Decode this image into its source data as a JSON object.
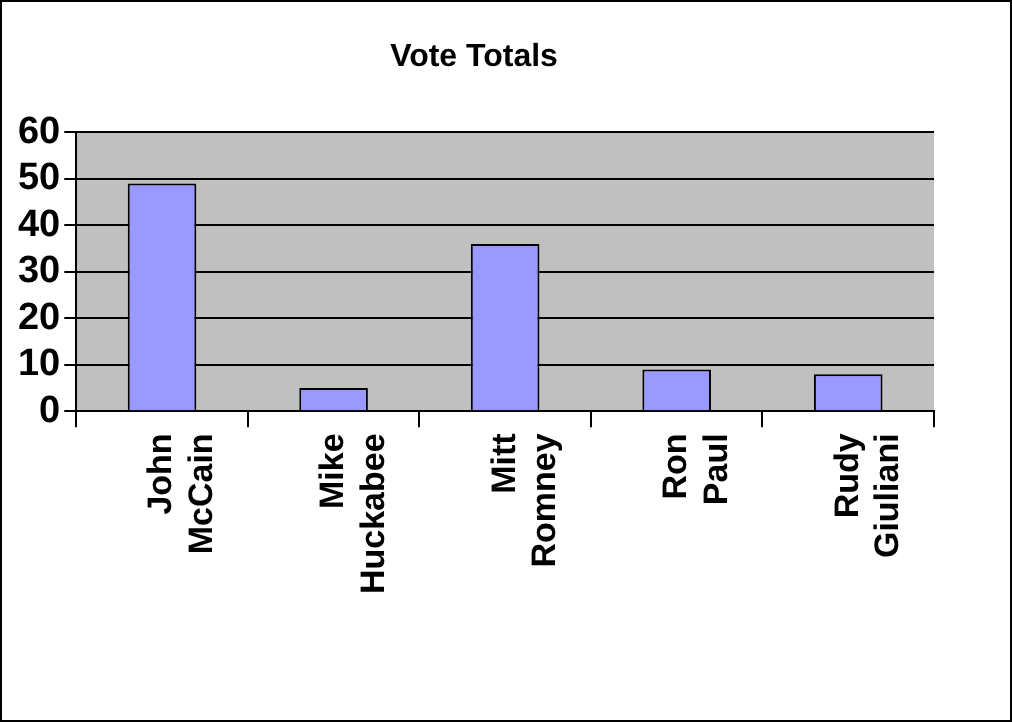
{
  "chart_data": {
    "type": "bar",
    "title": "Vote Totals",
    "categories": [
      "John McCain",
      "Mike Huckabee",
      "Mitt Romney",
      "Ron Paul",
      "Rudy Giuliani"
    ],
    "values": [
      49,
      5,
      36,
      9,
      8
    ],
    "color": "#9999ff",
    "ylim": [
      0,
      60
    ],
    "yticks": [
      0,
      10,
      20,
      30,
      40,
      50,
      60
    ],
    "grid": "y",
    "legend": false
  }
}
